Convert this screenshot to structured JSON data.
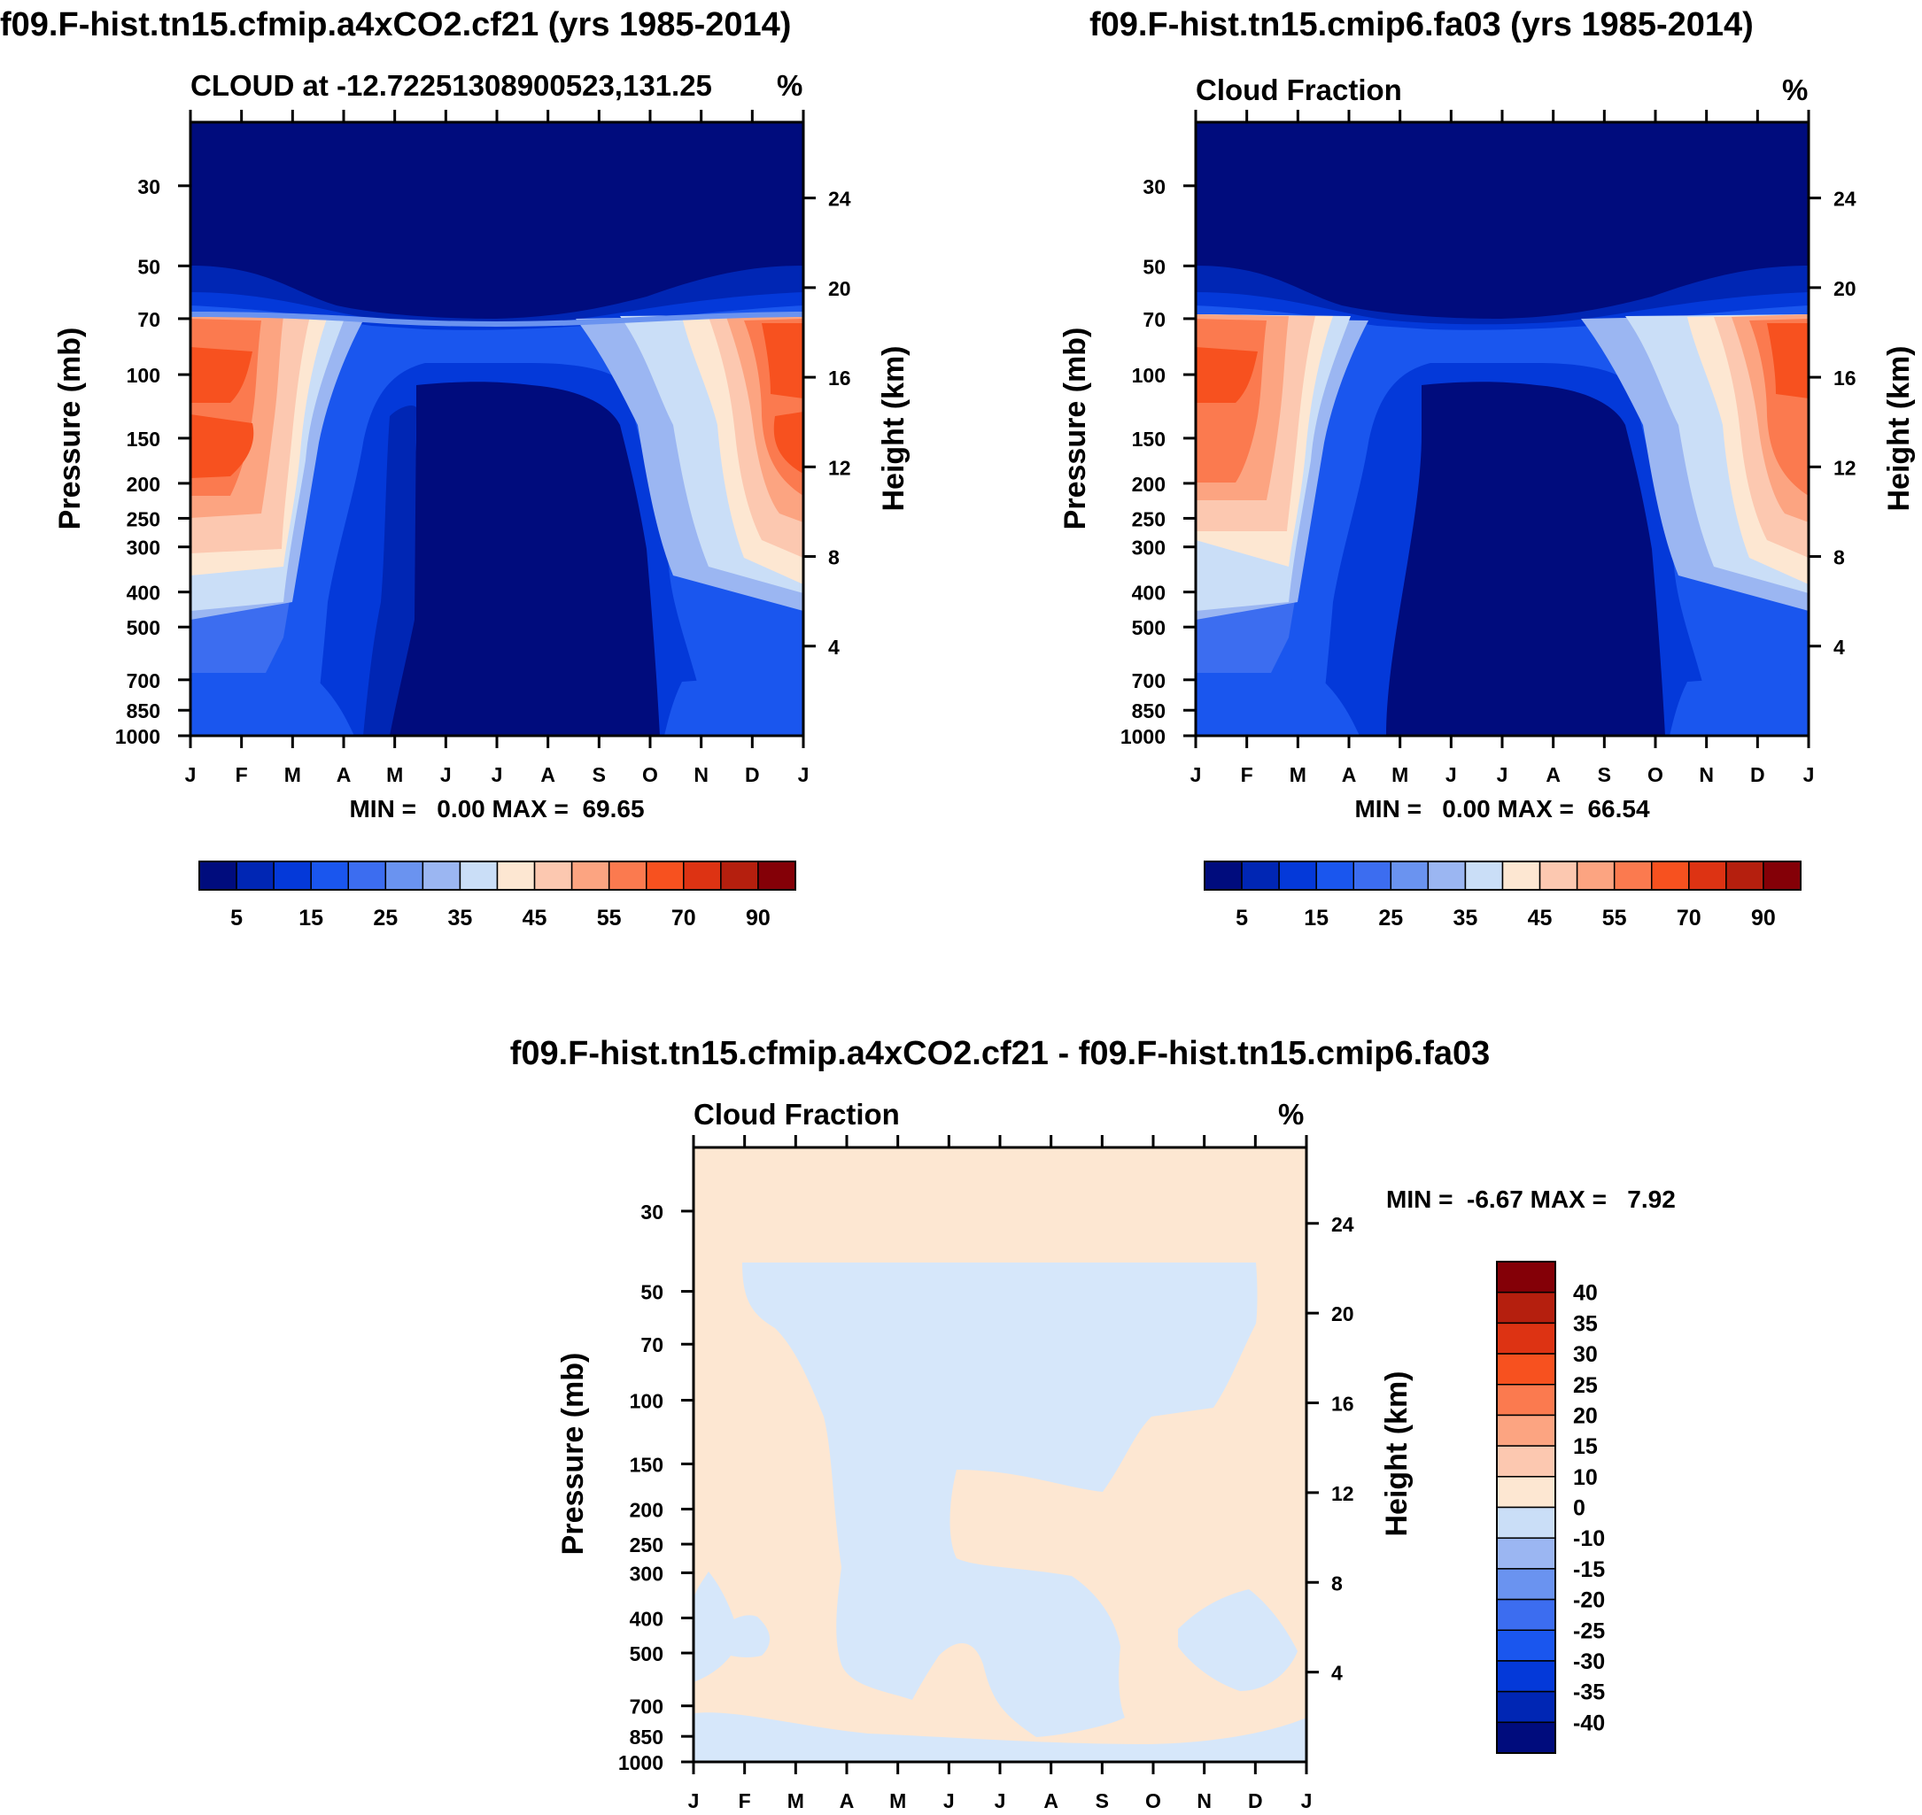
{
  "chart_data": [
    {
      "type": "contour",
      "title": "f09.F-hist.tn15.cfmip.a4xCO2.cf21 (yrs 1985-2014)",
      "left_label": "CLOUD at -12.72251308900523,131.25",
      "right_label": "%",
      "xlabel": "",
      "ylabel": "Pressure (mb)",
      "ylabel_right": "Height (km)",
      "x_ticks": [
        "J",
        "F",
        "M",
        "A",
        "M",
        "J",
        "J",
        "A",
        "S",
        "O",
        "N",
        "D",
        "J"
      ],
      "pressure_ticks": [
        30,
        50,
        70,
        100,
        150,
        200,
        250,
        300,
        400,
        500,
        700,
        850,
        1000
      ],
      "height_ticks": [
        24,
        20,
        16,
        12,
        8,
        4
      ],
      "ylim_mb": [
        20,
        1000
      ],
      "stats": "MIN =   0.00 MAX =  69.65",
      "colorbar": {
        "colors": [
          "#000c7d",
          "#0026b4",
          "#0439d9",
          "#1a56ee",
          "#3c6df0",
          "#6a93f0",
          "#9bb6f2",
          "#cadef7",
          "#fde7d2",
          "#fcc8b0",
          "#fca481",
          "#fb7a4f",
          "#f7511f",
          "#dd3313",
          "#b51f0e",
          "#840007"
        ],
        "labels": [
          "5",
          "15",
          "25",
          "35",
          "45",
          "55",
          "70",
          "90"
        ]
      },
      "min": 0.0,
      "max": 69.65
    },
    {
      "type": "contour",
      "title": "f09.F-hist.tn15.cmip6.fa03 (yrs 1985-2014)",
      "left_label": "Cloud Fraction",
      "right_label": "%",
      "ylabel": "Pressure (mb)",
      "ylabel_right": "Height (km)",
      "x_ticks": [
        "J",
        "F",
        "M",
        "A",
        "M",
        "J",
        "J",
        "A",
        "S",
        "O",
        "N",
        "D",
        "J"
      ],
      "pressure_ticks": [
        30,
        50,
        70,
        100,
        150,
        200,
        250,
        300,
        400,
        500,
        700,
        850,
        1000
      ],
      "height_ticks": [
        24,
        20,
        16,
        12,
        8,
        4
      ],
      "stats": "MIN =   0.00 MAX =  66.54",
      "colorbar": {
        "colors": [
          "#000c7d",
          "#0026b4",
          "#0439d9",
          "#1a56ee",
          "#3c6df0",
          "#6a93f0",
          "#9bb6f2",
          "#cadef7",
          "#fde7d2",
          "#fcc8b0",
          "#fca481",
          "#fb7a4f",
          "#f7511f",
          "#dd3313",
          "#b51f0e",
          "#840007"
        ],
        "labels": [
          "5",
          "15",
          "25",
          "35",
          "45",
          "55",
          "70",
          "90"
        ]
      },
      "min": 0.0,
      "max": 66.54
    },
    {
      "type": "contour",
      "title": "f09.F-hist.tn15.cfmip.a4xCO2.cf21 - f09.F-hist.tn15.cmip6.fa03",
      "left_label": "Cloud Fraction",
      "right_label": "%",
      "ylabel": "Pressure (mb)",
      "ylabel_right": "Height (km)",
      "x_ticks": [
        "J",
        "F",
        "M",
        "A",
        "M",
        "J",
        "J",
        "A",
        "S",
        "O",
        "N",
        "D",
        "J"
      ],
      "pressure_ticks": [
        30,
        50,
        70,
        100,
        150,
        200,
        250,
        300,
        400,
        500,
        700,
        850,
        1000
      ],
      "height_ticks": [
        24,
        20,
        16,
        12,
        8,
        4
      ],
      "stats": "MIN =  -6.67 MAX =   7.92",
      "colorbar": {
        "colors": [
          "#840007",
          "#b51f0e",
          "#dd3313",
          "#f7511f",
          "#fb7a4f",
          "#fca481",
          "#fcc8b0",
          "#fde7d2",
          "#cadef7",
          "#9bb6f2",
          "#6a93f0",
          "#3c6df0",
          "#1a56ee",
          "#0439d9",
          "#0026b4",
          "#000c7d"
        ],
        "labels": [
          "40",
          "35",
          "30",
          "25",
          "20",
          "15",
          "10",
          "0",
          "-10",
          "-15",
          "-20",
          "-25",
          "-30",
          "-35",
          "-40"
        ]
      },
      "min": -6.67,
      "max": 7.92
    }
  ]
}
